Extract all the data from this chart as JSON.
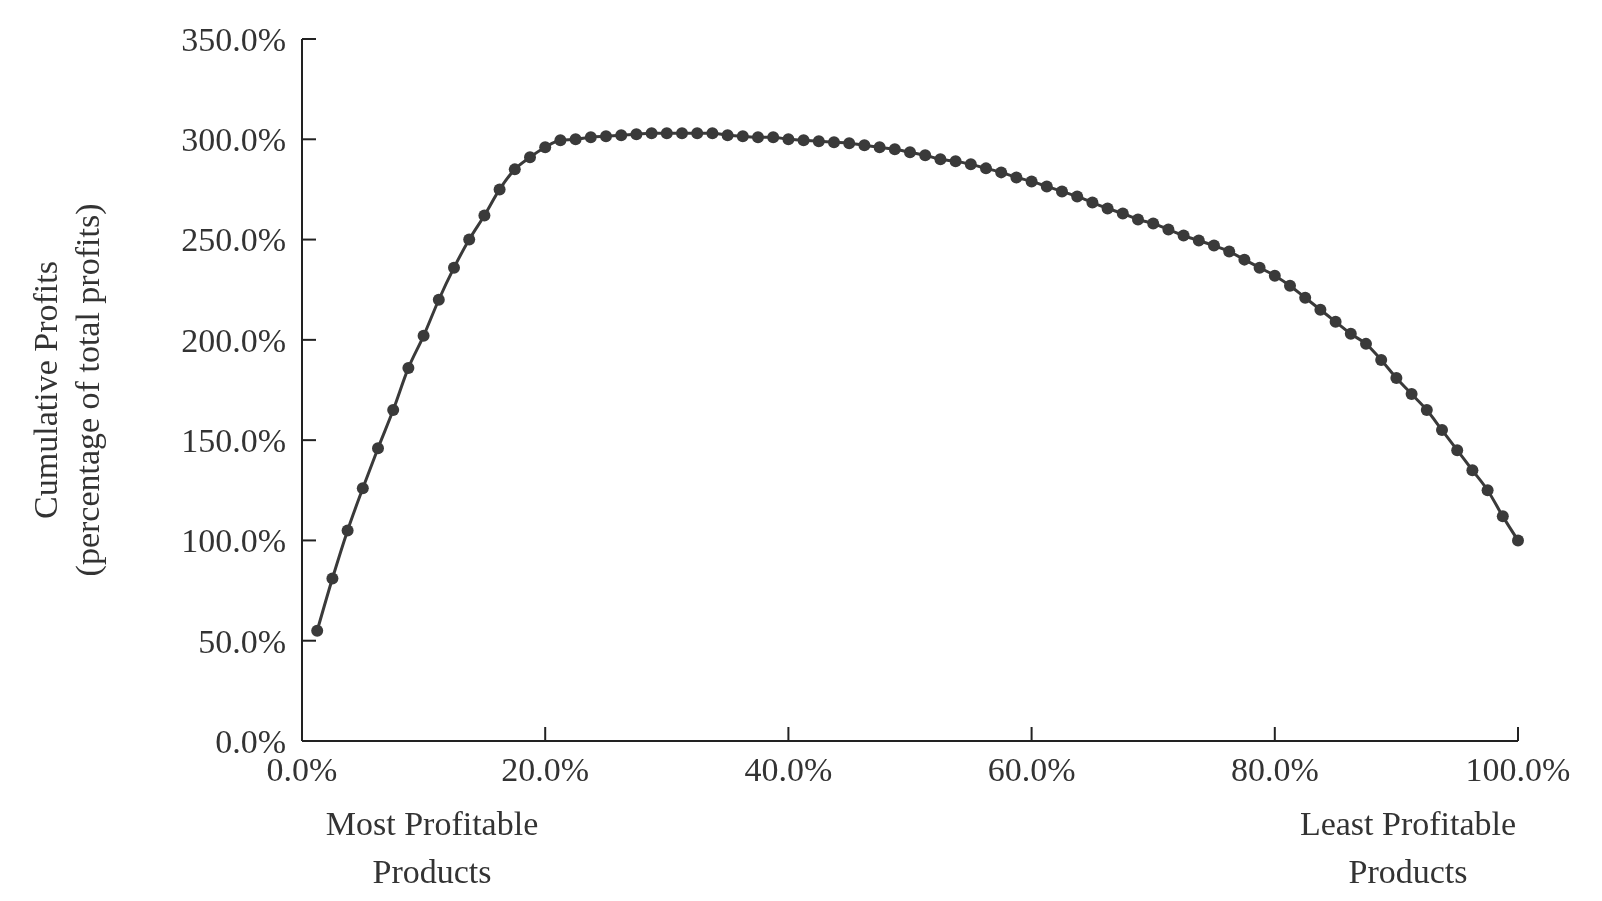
{
  "chart_data": {
    "type": "line",
    "ylabel": "Cumulative Profits\n(percentage of total profits)",
    "annotations": [
      "Most Profitable\nProducts",
      "Least Profitable\nProducts"
    ],
    "x": [
      1.25,
      2.5,
      3.75,
      5,
      6.25,
      7.5,
      8.75,
      10,
      11.25,
      12.5,
      13.75,
      15,
      16.25,
      17.5,
      18.75,
      20,
      21.25,
      22.5,
      23.75,
      25,
      26.25,
      27.5,
      28.75,
      30,
      31.25,
      32.5,
      33.75,
      35,
      36.25,
      37.5,
      38.75,
      40,
      41.25,
      42.5,
      43.75,
      45,
      46.25,
      47.5,
      48.75,
      50,
      51.25,
      52.5,
      53.75,
      55,
      56.25,
      57.5,
      58.75,
      60,
      61.25,
      62.5,
      63.75,
      65,
      66.25,
      67.5,
      68.75,
      70,
      71.25,
      72.5,
      73.75,
      75,
      76.25,
      77.5,
      78.75,
      80,
      81.25,
      82.5,
      83.75,
      85,
      86.25,
      87.5,
      88.75,
      90,
      91.25,
      92.5,
      93.75,
      95,
      96.25,
      97.5,
      98.75,
      100
    ],
    "series": [
      {
        "color": "#3a3a3a",
        "values": [
          55,
          81,
          105,
          126,
          146,
          165,
          186,
          202,
          220,
          236,
          250,
          262,
          275,
          285,
          291,
          296,
          299.5,
          300,
          301,
          301.5,
          302,
          302.5,
          303,
          303,
          303,
          303,
          303,
          302,
          301.5,
          301,
          301,
          300,
          299.5,
          299,
          298.5,
          298,
          297,
          296,
          295,
          293.5,
          292,
          290,
          289,
          287.5,
          285.5,
          283.5,
          281,
          279,
          276.5,
          274,
          271.5,
          268.5,
          265.5,
          263,
          260,
          258,
          255,
          252,
          249.5,
          247,
          244,
          240,
          236,
          232,
          227,
          221,
          215,
          209,
          203,
          198,
          190,
          181,
          173,
          165,
          155,
          145,
          135,
          125,
          112,
          100
        ]
      }
    ],
    "xlim": [
      0,
      100
    ],
    "ylim": [
      0,
      350
    ],
    "xticks": [
      {
        "value": 0,
        "label": "0.0%"
      },
      {
        "value": 20,
        "label": "20.0%"
      },
      {
        "value": 40,
        "label": "40.0%"
      },
      {
        "value": 60,
        "label": "60.0%"
      },
      {
        "value": 80,
        "label": "80.0%"
      },
      {
        "value": 100,
        "label": "100.0%"
      }
    ],
    "yticks": [
      {
        "value": 0,
        "label": "0.0%"
      },
      {
        "value": 50,
        "label": "50.0%"
      },
      {
        "value": 100,
        "label": "100.0%"
      },
      {
        "value": 150,
        "label": "150.0%"
      },
      {
        "value": 200,
        "label": "200.0%"
      },
      {
        "value": 250,
        "label": "250.0%"
      },
      {
        "value": 300,
        "label": "300.0%"
      },
      {
        "value": 350,
        "label": "350.0%"
      }
    ],
    "marker": "circle",
    "line_style": "solid",
    "grid": false
  }
}
